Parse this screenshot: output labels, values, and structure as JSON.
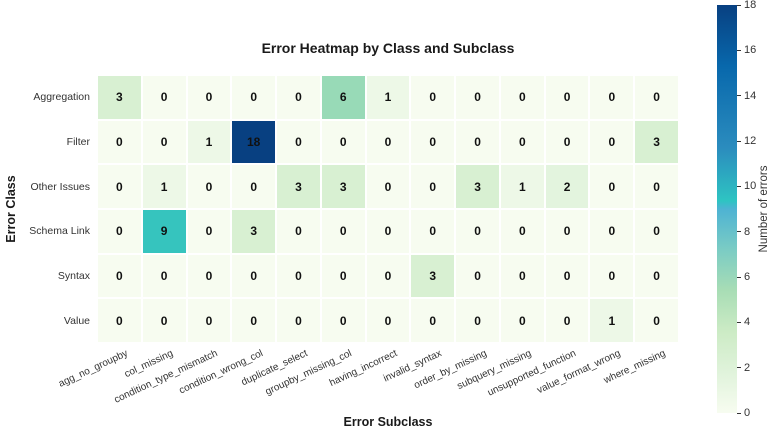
{
  "chart_data": {
    "type": "heatmap",
    "title": "Error Heatmap by Class and Subclass",
    "xlabel": "Error Subclass",
    "ylabel": "Error Class",
    "colorbar_label": "Number of errors",
    "colorbar_range": [
      0,
      18
    ],
    "colorbar_ticks": [
      0,
      2,
      4,
      6,
      8,
      10,
      12,
      14,
      16,
      18
    ],
    "colormap": "GnBu",
    "rows": [
      "Aggregation",
      "Filter",
      "Other Issues",
      "Schema Link",
      "Syntax",
      "Value"
    ],
    "columns": [
      "agg_no_groupby",
      "col_missing",
      "condition_type_mismatch",
      "condition_wrong_col",
      "duplicate_select",
      "groupby_missing_col",
      "having_incorrect",
      "invalid_syntax",
      "order_by_missing",
      "subquery_missing",
      "unsupported_function",
      "value_format_wrong",
      "where_missing"
    ],
    "values": [
      [
        3,
        0,
        0,
        0,
        0,
        6,
        1,
        0,
        0,
        0,
        0,
        0,
        0
      ],
      [
        0,
        0,
        1,
        18,
        0,
        0,
        0,
        0,
        0,
        0,
        0,
        0,
        3
      ],
      [
        0,
        1,
        0,
        0,
        3,
        3,
        0,
        0,
        3,
        1,
        2,
        0,
        0
      ],
      [
        0,
        9,
        0,
        3,
        0,
        0,
        0,
        0,
        0,
        0,
        0,
        0,
        0
      ],
      [
        0,
        0,
        0,
        0,
        0,
        0,
        0,
        3,
        0,
        0,
        0,
        0,
        0
      ],
      [
        0,
        0,
        0,
        0,
        0,
        0,
        0,
        0,
        0,
        0,
        0,
        1,
        0
      ]
    ]
  }
}
